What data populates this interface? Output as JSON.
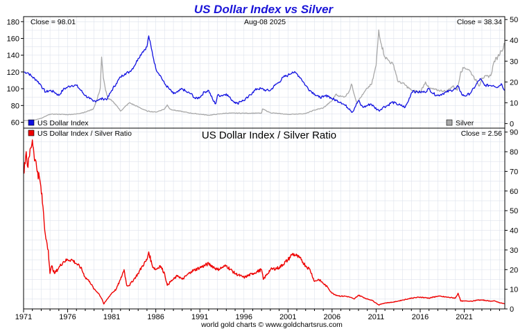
{
  "page": {
    "title": "US Dollar Index vs Silver",
    "credit": "world gold charts © www.goldchartsrus.com"
  },
  "chart_data": [
    {
      "type": "line",
      "title": "US Dollar Index vs Silver",
      "date_label": "Aug-08  2025",
      "close_left": "Close = 98.01",
      "close_right": "Close = 38.34",
      "x_ticks": [
        "1971",
        "1976",
        "1981",
        "1986",
        "1991",
        "1996",
        "2001",
        "2006",
        "2011",
        "2016",
        "2021"
      ],
      "xlim": [
        1971,
        2025.6
      ],
      "y_left": {
        "ticks": [
          "60",
          "80",
          "100",
          "120",
          "140",
          "160",
          "180"
        ],
        "ylim": [
          53,
          186
        ]
      },
      "y_right": {
        "ticks": [
          "0",
          "10",
          "20",
          "30",
          "40",
          "50"
        ],
        "ylim": [
          -2.2,
          51.4
        ]
      },
      "legend": {
        "left_series": "US Dollar Index",
        "right_series": "Silver"
      },
      "grid": true,
      "colors": {
        "dxy": "#1010e0",
        "silver": "#a8a8a8"
      },
      "series": [
        {
          "name": "US Dollar Index",
          "axis": "left",
          "x": [
            1971.0,
            1971.5,
            1972.0,
            1972.5,
            1973.0,
            1973.2,
            1973.5,
            1974.0,
            1974.5,
            1975.0,
            1975.5,
            1976.0,
            1976.5,
            1977.0,
            1977.5,
            1978.0,
            1978.5,
            1978.9,
            1979.5,
            1980.0,
            1980.5,
            1981.0,
            1981.5,
            1982.0,
            1982.5,
            1983.0,
            1983.5,
            1984.0,
            1984.5,
            1985.0,
            1985.2,
            1985.5,
            1986.0,
            1986.5,
            1987.0,
            1987.5,
            1988.0,
            1988.5,
            1989.0,
            1989.5,
            1990.0,
            1990.5,
            1991.0,
            1991.5,
            1992.0,
            1992.5,
            1992.8,
            1993.0,
            1993.5,
            1994.0,
            1994.5,
            1995.0,
            1995.3,
            1995.5,
            1996.0,
            1996.5,
            1997.0,
            1997.5,
            1998.0,
            1998.5,
            1999.0,
            1999.5,
            2000.0,
            2000.5,
            2001.0,
            2001.5,
            2002.0,
            2002.5,
            2003.0,
            2003.5,
            2004.0,
            2004.5,
            2005.0,
            2005.5,
            2006.0,
            2006.5,
            2007.0,
            2007.5,
            2008.0,
            2008.3,
            2008.6,
            2009.0,
            2009.3,
            2009.6,
            2010.0,
            2010.4,
            2010.8,
            2011.3,
            2011.8,
            2012.3,
            2012.8,
            2013.3,
            2013.8,
            2014.3,
            2014.6,
            2015.0,
            2015.2,
            2015.5,
            2016.0,
            2016.5,
            2017.0,
            2017.5,
            2018.0,
            2018.5,
            2019.0,
            2019.5,
            2020.0,
            2020.3,
            2020.8,
            2021.3,
            2021.8,
            2022.3,
            2022.8,
            2023.3,
            2023.8,
            2024.3,
            2024.8,
            2025.2,
            2025.6
          ],
          "values": [
            120,
            119,
            114,
            110,
            104,
            100,
            96,
            98,
            96,
            92,
            99,
            102,
            104,
            104,
            98,
            92,
            88,
            85,
            87,
            88,
            88,
            98,
            106,
            114,
            118,
            120,
            126,
            136,
            144,
            150,
            163,
            148,
            124,
            116,
            106,
            100,
            94,
            96,
            100,
            96,
            94,
            88,
            90,
            96,
            98,
            86,
            82,
            92,
            92,
            94,
            88,
            84,
            82,
            85,
            86,
            90,
            96,
            100,
            100,
            98,
            98,
            104,
            108,
            114,
            116,
            120,
            118,
            112,
            104,
            98,
            94,
            90,
            90,
            92,
            88,
            86,
            84,
            80,
            76,
            72,
            78,
            86,
            80,
            78,
            80,
            82,
            78,
            74,
            78,
            80,
            84,
            82,
            80,
            78,
            84,
            95,
            98,
            96,
            96,
            96,
            100,
            94,
            92,
            94,
            96,
            98,
            100,
            103,
            92,
            92,
            96,
            104,
            112,
            104,
            104,
            104,
            102,
            106,
            98
          ]
        },
        {
          "name": "Silver",
          "axis": "right",
          "x": [
            1971.0,
            1972.0,
            1973.0,
            1974.0,
            1975.0,
            1976.0,
            1977.0,
            1978.0,
            1978.9,
            1979.3,
            1979.7,
            1979.85,
            1980.05,
            1980.3,
            1980.6,
            1981.0,
            1981.5,
            1982.0,
            1983.0,
            1984.0,
            1985.0,
            1986.0,
            1987.0,
            1987.3,
            1987.6,
            1988.0,
            1990.0,
            1992.0,
            1994.0,
            1996.0,
            1998.0,
            1998.1,
            1999.0,
            2001.0,
            2002.0,
            2003.0,
            2004.0,
            2005.0,
            2006.0,
            2006.4,
            2007.0,
            2007.5,
            2008.0,
            2008.2,
            2008.8,
            2009.5,
            2010.0,
            2010.5,
            2011.0,
            2011.3,
            2011.6,
            2012.0,
            2012.5,
            2013.0,
            2013.5,
            2014.0,
            2015.0,
            2016.0,
            2016.6,
            2017.0,
            2018.0,
            2019.0,
            2019.7,
            2020.2,
            2020.6,
            2021.0,
            2021.5,
            2022.0,
            2022.7,
            2023.0,
            2024.0,
            2024.4,
            2024.8,
            2025.2,
            2025.6
          ],
          "values": [
            1.5,
            1.5,
            2.5,
            4.5,
            4.5,
            4.3,
            4.6,
            5.5,
            7,
            11,
            17,
            32,
            22,
            16,
            12,
            11,
            9,
            6,
            10,
            8,
            6,
            5.5,
            7,
            9,
            7,
            6.5,
            5,
            4,
            5,
            5,
            5,
            7,
            5.2,
            4.4,
            4.6,
            4.8,
            6.5,
            7.5,
            11,
            14,
            13,
            13,
            16,
            19,
            10,
            14,
            17,
            19,
            28,
            45,
            38,
            32,
            30,
            28,
            20,
            19.5,
            16,
            15,
            20,
            17,
            16,
            15.5,
            18,
            16,
            25,
            27,
            26,
            23,
            18,
            22,
            23,
            30,
            32,
            35,
            38.3
          ]
        }
      ]
    },
    {
      "type": "line",
      "title": "US Dollar Index / Silver Ratio",
      "close": "Close = 2.56",
      "x_ticks": [
        "1971",
        "1976",
        "1981",
        "1986",
        "1991",
        "1996",
        "2001",
        "2006",
        "2011",
        "2016",
        "2021"
      ],
      "xlim": [
        1971,
        2025.6
      ],
      "y_right": {
        "ticks": [
          "0",
          "10",
          "20",
          "30",
          "40",
          "50",
          "60",
          "70",
          "80",
          "90"
        ],
        "ylim": [
          0,
          92
        ]
      },
      "legend": {
        "series": "US Dollar Index / Silver Ratio"
      },
      "grid": true,
      "colors": {
        "ratio": "#ee0000"
      },
      "series": [
        {
          "name": "US Dollar Index / Silver Ratio",
          "axis": "right",
          "x": [
            1971.0,
            1971.3,
            1971.5,
            1971.8,
            1972.0,
            1972.3,
            1972.6,
            1972.9,
            1973.2,
            1973.4,
            1973.6,
            1973.8,
            1974.0,
            1974.2,
            1974.5,
            1975.0,
            1975.5,
            1976.0,
            1976.5,
            1977.0,
            1977.5,
            1978.0,
            1978.5,
            1979.0,
            1979.5,
            1979.9,
            1980.1,
            1980.5,
            1981.0,
            1981.5,
            1982.0,
            1982.4,
            1982.7,
            1983.0,
            1983.5,
            1984.0,
            1984.5,
            1985.0,
            1985.2,
            1985.6,
            1986.0,
            1986.5,
            1987.0,
            1987.3,
            1987.7,
            1988.0,
            1988.5,
            1989.0,
            1990.0,
            1991.0,
            1992.0,
            1993.0,
            1993.5,
            1994.0,
            1995.0,
            1996.0,
            1997.0,
            1998.0,
            1998.2,
            1999.0,
            2000.0,
            2001.0,
            2001.5,
            2002.0,
            2002.5,
            2003.0,
            2003.5,
            2004.0,
            2004.5,
            2005.0,
            2005.5,
            2006.0,
            2006.5,
            2007.0,
            2007.5,
            2008.0,
            2008.5,
            2009.0,
            2009.5,
            2010.0,
            2010.5,
            2011.0,
            2011.3,
            2011.6,
            2012.0,
            2013.0,
            2013.5,
            2014.0,
            2015.0,
            2016.0,
            2017.0,
            2018.0,
            2019.0,
            2020.0,
            2020.3,
            2020.6,
            2021.0,
            2022.0,
            2022.5,
            2023.0,
            2024.0,
            2024.5,
            2025.0,
            2025.6
          ],
          "values": [
            70,
            80,
            72,
            82,
            86,
            76,
            70,
            64,
            52,
            40,
            35,
            30,
            18,
            22,
            18,
            21,
            24,
            25,
            25,
            23,
            21,
            16,
            14,
            10,
            8,
            5,
            2.5,
            5,
            8,
            10,
            15,
            20,
            12,
            12,
            15,
            18,
            22,
            25,
            29,
            22,
            20,
            22,
            18,
            12,
            14,
            15,
            17,
            15,
            19,
            21,
            23,
            20,
            21,
            22,
            18,
            16,
            18,
            20,
            15,
            20,
            21,
            25,
            28,
            27,
            25,
            22,
            20,
            14,
            15,
            13,
            11,
            8,
            7,
            6.5,
            6.5,
            6,
            5,
            7,
            6,
            5,
            4.5,
            3,
            2,
            2.5,
            3,
            3.5,
            4,
            4.5,
            5.5,
            6,
            5.5,
            6.5,
            6,
            5.5,
            8,
            4,
            4,
            4,
            4.5,
            4.5,
            4,
            4,
            3.2,
            2.56
          ]
        }
      ]
    }
  ]
}
